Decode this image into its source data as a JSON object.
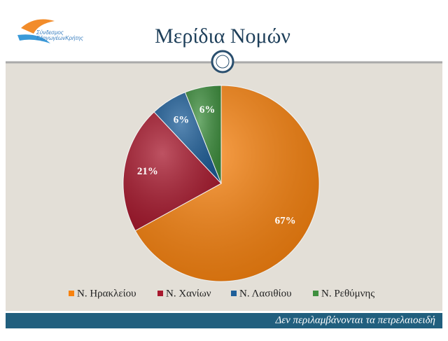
{
  "logo": {
    "line1": "Σύνδεσμος",
    "line2": "ΕξαγωγέωνΚρήτης"
  },
  "footer": "Δεν περιλαμβάνονται τα πετρελαιοειδή",
  "chart_data": {
    "type": "pie",
    "title": "Μερίδια Νομών",
    "categories": [
      "Ν. Ηρακλείου",
      "Ν. Χανίων",
      "Ν. Λασιθίου",
      "Ν. Ρεθύμνης"
    ],
    "values": [
      67,
      21,
      6,
      6
    ],
    "value_labels": [
      "67%",
      "21%",
      "6%",
      "6%"
    ],
    "colors": [
      "#f7820f",
      "#a8192e",
      "#1f5f99",
      "#3f8f3f"
    ],
    "legend": "bottom"
  }
}
